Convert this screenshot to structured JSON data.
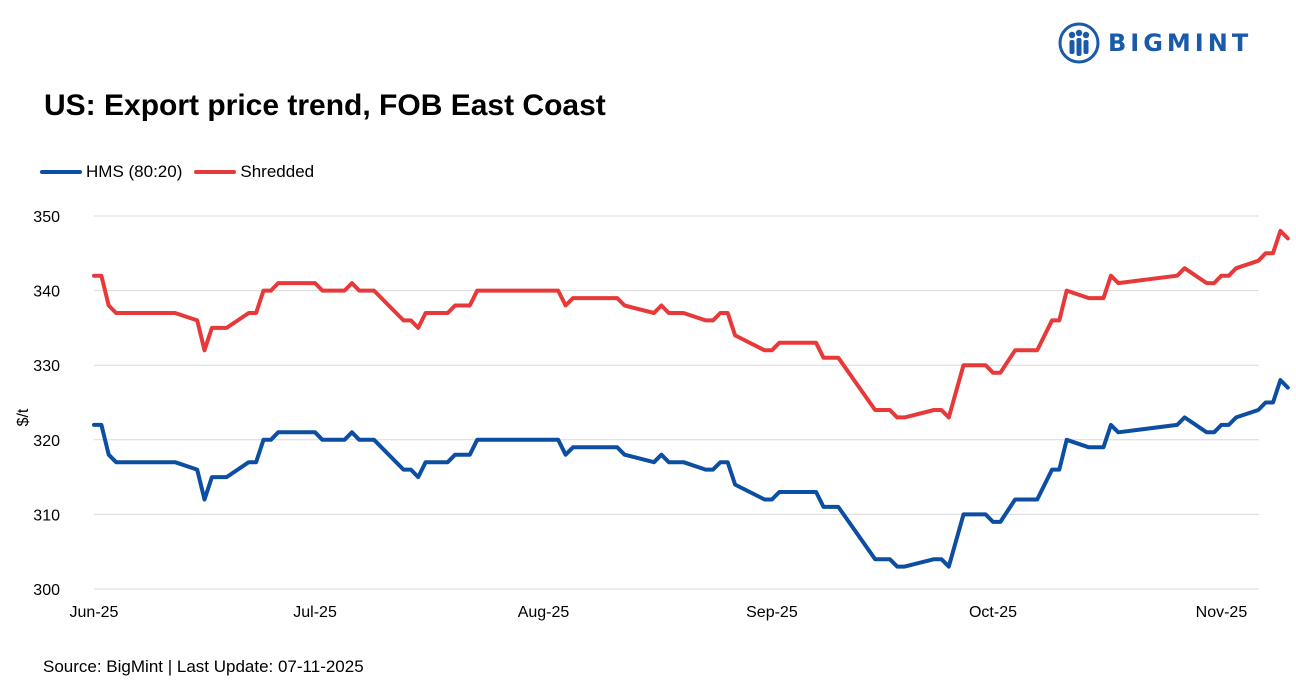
{
  "brand": {
    "name": "BIGMINT",
    "logo_icon": "bigmint-logo-icon",
    "color": "#1a5aa8"
  },
  "title": "US: Export price trend, FOB East Coast",
  "source": "Source: BigMint | Last Update: 07-11-2025",
  "chart_data": {
    "type": "line",
    "title": "US: Export price trend, FOB East Coast",
    "ylabel": "$/t",
    "xlabel": "",
    "ylim": [
      300,
      350
    ],
    "yticks": [
      300,
      310,
      320,
      330,
      340,
      350
    ],
    "xlim": [
      "2025-06-01",
      "2025-11-08"
    ],
    "xticks": [
      {
        "date": "2025-06-01",
        "label": "Jun-25"
      },
      {
        "date": "2025-07-01",
        "label": "Jul-25"
      },
      {
        "date": "2025-08-01",
        "label": "Aug-25"
      },
      {
        "date": "2025-09-01",
        "label": "Sep-25"
      },
      {
        "date": "2025-10-01",
        "label": "Oct-25"
      },
      {
        "date": "2025-11-01",
        "label": "Nov-25"
      }
    ],
    "grid": true,
    "legend_position": "top-left",
    "series": [
      {
        "name": "HMS (80:20)",
        "color": "#0b4ea2",
        "points": [
          [
            "2025-06-01",
            322
          ],
          [
            "2025-06-02",
            322
          ],
          [
            "2025-06-03",
            318
          ],
          [
            "2025-06-04",
            317
          ],
          [
            "2025-06-05",
            317
          ],
          [
            "2025-06-12",
            317
          ],
          [
            "2025-06-15",
            316
          ],
          [
            "2025-06-16",
            312
          ],
          [
            "2025-06-17",
            315
          ],
          [
            "2025-06-19",
            315
          ],
          [
            "2025-06-22",
            317
          ],
          [
            "2025-06-23",
            317
          ],
          [
            "2025-06-24",
            320
          ],
          [
            "2025-06-25",
            320
          ],
          [
            "2025-06-26",
            321
          ],
          [
            "2025-07-01",
            321
          ],
          [
            "2025-07-02",
            320
          ],
          [
            "2025-07-05",
            320
          ],
          [
            "2025-07-06",
            321
          ],
          [
            "2025-07-07",
            320
          ],
          [
            "2025-07-09",
            320
          ],
          [
            "2025-07-13",
            316
          ],
          [
            "2025-07-14",
            316
          ],
          [
            "2025-07-15",
            315
          ],
          [
            "2025-07-16",
            317
          ],
          [
            "2025-07-19",
            317
          ],
          [
            "2025-07-20",
            318
          ],
          [
            "2025-07-22",
            318
          ],
          [
            "2025-07-23",
            320
          ],
          [
            "2025-08-03",
            320
          ],
          [
            "2025-08-04",
            318
          ],
          [
            "2025-08-05",
            319
          ],
          [
            "2025-08-11",
            319
          ],
          [
            "2025-08-12",
            318
          ],
          [
            "2025-08-16",
            317
          ],
          [
            "2025-08-17",
            318
          ],
          [
            "2025-08-18",
            317
          ],
          [
            "2025-08-20",
            317
          ],
          [
            "2025-08-23",
            316
          ],
          [
            "2025-08-24",
            316
          ],
          [
            "2025-08-25",
            317
          ],
          [
            "2025-08-26",
            317
          ],
          [
            "2025-08-27",
            314
          ],
          [
            "2025-08-31",
            312
          ],
          [
            "2025-09-01",
            312
          ],
          [
            "2025-09-02",
            313
          ],
          [
            "2025-09-07",
            313
          ],
          [
            "2025-09-08",
            311
          ],
          [
            "2025-09-10",
            311
          ],
          [
            "2025-09-15",
            304
          ],
          [
            "2025-09-17",
            304
          ],
          [
            "2025-09-18",
            303
          ],
          [
            "2025-09-19",
            303
          ],
          [
            "2025-09-23",
            304
          ],
          [
            "2025-09-24",
            304
          ],
          [
            "2025-09-25",
            303
          ],
          [
            "2025-09-27",
            310
          ],
          [
            "2025-09-30",
            310
          ],
          [
            "2025-10-01",
            309
          ],
          [
            "2025-10-02",
            309
          ],
          [
            "2025-10-04",
            312
          ],
          [
            "2025-10-07",
            312
          ],
          [
            "2025-10-09",
            316
          ],
          [
            "2025-10-10",
            316
          ],
          [
            "2025-10-11",
            320
          ],
          [
            "2025-10-14",
            319
          ],
          [
            "2025-10-16",
            319
          ],
          [
            "2025-10-17",
            322
          ],
          [
            "2025-10-18",
            321
          ],
          [
            "2025-10-26",
            322
          ],
          [
            "2025-10-27",
            323
          ],
          [
            "2025-10-30",
            321
          ],
          [
            "2025-10-31",
            321
          ],
          [
            "2025-11-01",
            322
          ],
          [
            "2025-11-02",
            322
          ],
          [
            "2025-11-03",
            323
          ],
          [
            "2025-11-06",
            324
          ],
          [
            "2025-11-07",
            325
          ],
          [
            "2025-11-08",
            325
          ],
          [
            "2025-11-09",
            328
          ],
          [
            "2025-11-10",
            327
          ]
        ]
      },
      {
        "name": "Shredded",
        "color": "#e8393a",
        "points": [
          [
            "2025-06-01",
            342
          ],
          [
            "2025-06-02",
            342
          ],
          [
            "2025-06-03",
            338
          ],
          [
            "2025-06-04",
            337
          ],
          [
            "2025-06-05",
            337
          ],
          [
            "2025-06-12",
            337
          ],
          [
            "2025-06-15",
            336
          ],
          [
            "2025-06-16",
            332
          ],
          [
            "2025-06-17",
            335
          ],
          [
            "2025-06-19",
            335
          ],
          [
            "2025-06-22",
            337
          ],
          [
            "2025-06-23",
            337
          ],
          [
            "2025-06-24",
            340
          ],
          [
            "2025-06-25",
            340
          ],
          [
            "2025-06-26",
            341
          ],
          [
            "2025-07-01",
            341
          ],
          [
            "2025-07-02",
            340
          ],
          [
            "2025-07-05",
            340
          ],
          [
            "2025-07-06",
            341
          ],
          [
            "2025-07-07",
            340
          ],
          [
            "2025-07-09",
            340
          ],
          [
            "2025-07-13",
            336
          ],
          [
            "2025-07-14",
            336
          ],
          [
            "2025-07-15",
            335
          ],
          [
            "2025-07-16",
            337
          ],
          [
            "2025-07-19",
            337
          ],
          [
            "2025-07-20",
            338
          ],
          [
            "2025-07-22",
            338
          ],
          [
            "2025-07-23",
            340
          ],
          [
            "2025-08-03",
            340
          ],
          [
            "2025-08-04",
            338
          ],
          [
            "2025-08-05",
            339
          ],
          [
            "2025-08-11",
            339
          ],
          [
            "2025-08-12",
            338
          ],
          [
            "2025-08-16",
            337
          ],
          [
            "2025-08-17",
            338
          ],
          [
            "2025-08-18",
            337
          ],
          [
            "2025-08-20",
            337
          ],
          [
            "2025-08-23",
            336
          ],
          [
            "2025-08-24",
            336
          ],
          [
            "2025-08-25",
            337
          ],
          [
            "2025-08-26",
            337
          ],
          [
            "2025-08-27",
            334
          ],
          [
            "2025-08-31",
            332
          ],
          [
            "2025-09-01",
            332
          ],
          [
            "2025-09-02",
            333
          ],
          [
            "2025-09-07",
            333
          ],
          [
            "2025-09-08",
            331
          ],
          [
            "2025-09-10",
            331
          ],
          [
            "2025-09-15",
            324
          ],
          [
            "2025-09-17",
            324
          ],
          [
            "2025-09-18",
            323
          ],
          [
            "2025-09-19",
            323
          ],
          [
            "2025-09-23",
            324
          ],
          [
            "2025-09-24",
            324
          ],
          [
            "2025-09-25",
            323
          ],
          [
            "2025-09-27",
            330
          ],
          [
            "2025-09-30",
            330
          ],
          [
            "2025-10-01",
            329
          ],
          [
            "2025-10-02",
            329
          ],
          [
            "2025-10-04",
            332
          ],
          [
            "2025-10-07",
            332
          ],
          [
            "2025-10-09",
            336
          ],
          [
            "2025-10-10",
            336
          ],
          [
            "2025-10-11",
            340
          ],
          [
            "2025-10-14",
            339
          ],
          [
            "2025-10-16",
            339
          ],
          [
            "2025-10-17",
            342
          ],
          [
            "2025-10-18",
            341
          ],
          [
            "2025-10-26",
            342
          ],
          [
            "2025-10-27",
            343
          ],
          [
            "2025-10-30",
            341
          ],
          [
            "2025-10-31",
            341
          ],
          [
            "2025-11-01",
            342
          ],
          [
            "2025-11-02",
            342
          ],
          [
            "2025-11-03",
            343
          ],
          [
            "2025-11-06",
            344
          ],
          [
            "2025-11-07",
            345
          ],
          [
            "2025-11-08",
            345
          ],
          [
            "2025-11-09",
            348
          ],
          [
            "2025-11-10",
            347
          ]
        ]
      }
    ]
  }
}
